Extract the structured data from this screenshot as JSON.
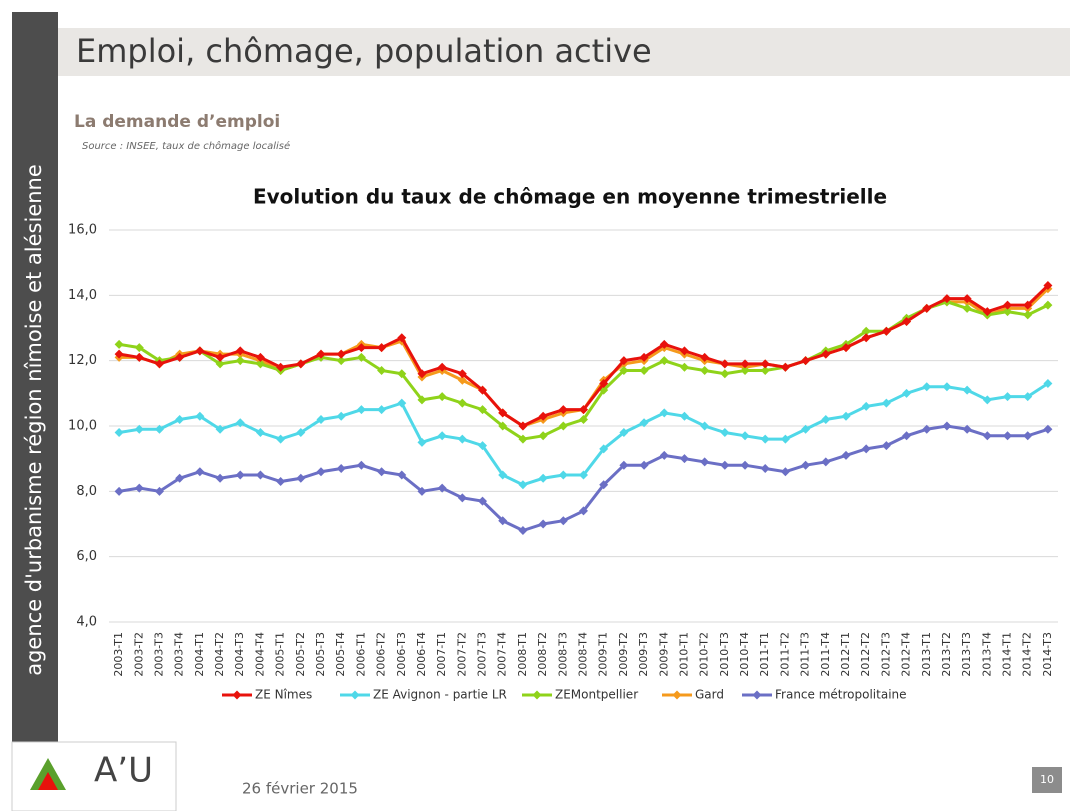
{
  "sidebar": {
    "text": "agence d'urbanisme région nîmoise et alésienne"
  },
  "header": {
    "title": "Emploi, chômage, population active"
  },
  "section": {
    "title": "La demande d’emploi",
    "source": "Source : INSEE, taux de chômage localisé"
  },
  "chart_data": {
    "type": "line",
    "title": "Evolution du taux de chômage en moyenne trimestrielle",
    "categories": [
      "2003-T1",
      "2003-T2",
      "2003-T3",
      "2003-T4",
      "2004-T1",
      "2004-T2",
      "2004-T3",
      "2004-T4",
      "2005-T1",
      "2005-T2",
      "2005-T3",
      "2005-T4",
      "2006-T1",
      "2006-T2",
      "2006-T3",
      "2006-T4",
      "2007-T1",
      "2007-T2",
      "2007-T3",
      "2007-T4",
      "2008-T1",
      "2008-T2",
      "2008-T3",
      "2008-T4",
      "2009-T1",
      "2009-T2",
      "2009-T3",
      "2009-T4",
      "2010-T1",
      "2010-T2",
      "2010-T3",
      "2010-T4",
      "2011-T1",
      "2011-T2",
      "2011-T3",
      "2011-T4",
      "2012-T1",
      "2012-T2",
      "2012-T3",
      "2012-T4",
      "2013-T1",
      "2013-T2",
      "2013-T3",
      "2013-T4",
      "2014-T1",
      "2014-T2",
      "2014-T3"
    ],
    "series": [
      {
        "name": "ZE Nîmes",
        "color": "#e8120c",
        "values": [
          12.2,
          12.1,
          11.9,
          12.1,
          12.3,
          12.1,
          12.3,
          12.1,
          11.8,
          11.9,
          12.2,
          12.2,
          12.4,
          12.4,
          12.7,
          11.6,
          11.8,
          11.6,
          11.1,
          10.4,
          10.0,
          10.3,
          10.5,
          10.5,
          11.3,
          12.0,
          12.1,
          12.5,
          12.3,
          12.1,
          11.9,
          11.9,
          11.9,
          11.8,
          12.0,
          12.2,
          12.4,
          12.7,
          12.9,
          13.2,
          13.6,
          13.9,
          13.9,
          13.5,
          13.7,
          13.7,
          14.3
        ]
      },
      {
        "name": "ZE Avignon - partie LR",
        "color": "#4fd8e8",
        "values": [
          9.8,
          9.9,
          9.9,
          10.2,
          10.3,
          9.9,
          10.1,
          9.8,
          9.6,
          9.8,
          10.2,
          10.3,
          10.5,
          10.5,
          10.7,
          9.5,
          9.7,
          9.6,
          9.4,
          8.5,
          8.2,
          8.4,
          8.5,
          8.5,
          9.3,
          9.8,
          10.1,
          10.4,
          10.3,
          10.0,
          9.8,
          9.7,
          9.6,
          9.6,
          9.9,
          10.2,
          10.3,
          10.6,
          10.7,
          11.0,
          11.2,
          11.2,
          11.1,
          10.8,
          10.9,
          10.9,
          11.3
        ]
      },
      {
        "name": "ZEMontpellier",
        "color": "#8fd31a",
        "values": [
          12.5,
          12.4,
          12.0,
          12.1,
          12.3,
          11.9,
          12.0,
          11.9,
          11.7,
          11.9,
          12.1,
          12.0,
          12.1,
          11.7,
          11.6,
          10.8,
          10.9,
          10.7,
          10.5,
          10.0,
          9.6,
          9.7,
          10.0,
          10.2,
          11.1,
          11.7,
          11.7,
          12.0,
          11.8,
          11.7,
          11.6,
          11.7,
          11.7,
          11.8,
          12.0,
          12.3,
          12.5,
          12.9,
          12.9,
          13.3,
          13.6,
          13.8,
          13.6,
          13.4,
          13.5,
          13.4,
          13.7
        ]
      },
      {
        "name": "Gard",
        "color": "#f59a1c",
        "values": [
          12.1,
          12.1,
          11.9,
          12.2,
          12.3,
          12.2,
          12.2,
          12.0,
          11.7,
          11.9,
          12.2,
          12.2,
          12.5,
          12.4,
          12.6,
          11.5,
          11.7,
          11.4,
          11.1,
          10.4,
          10.0,
          10.2,
          10.4,
          10.5,
          11.4,
          11.9,
          12.0,
          12.4,
          12.2,
          12.0,
          11.9,
          11.8,
          11.9,
          11.8,
          12.0,
          12.2,
          12.4,
          12.7,
          12.9,
          13.2,
          13.6,
          13.8,
          13.8,
          13.4,
          13.6,
          13.6,
          14.2
        ]
      },
      {
        "name": "France métropolitaine",
        "color": "#6b6fc5",
        "values": [
          8.0,
          8.1,
          8.0,
          8.4,
          8.6,
          8.4,
          8.5,
          8.5,
          8.3,
          8.4,
          8.6,
          8.7,
          8.8,
          8.6,
          8.5,
          8.0,
          8.1,
          7.8,
          7.7,
          7.1,
          6.8,
          7.0,
          7.1,
          7.4,
          8.2,
          8.8,
          8.8,
          9.1,
          9.0,
          8.9,
          8.8,
          8.8,
          8.7,
          8.6,
          8.8,
          8.9,
          9.1,
          9.3,
          9.4,
          9.7,
          9.9,
          10.0,
          9.9,
          9.7,
          9.7,
          9.7,
          9.9
        ]
      }
    ],
    "ylim": [
      4,
      16
    ],
    "yticks": [
      {
        "value": 4,
        "label": "4,0"
      },
      {
        "value": 6,
        "label": "6,0"
      },
      {
        "value": 8,
        "label": "8,0"
      },
      {
        "value": 10,
        "label": "10,0"
      },
      {
        "value": 12,
        "label": "12,0"
      },
      {
        "value": 14,
        "label": "14,0"
      },
      {
        "value": 16,
        "label": "16,0"
      }
    ],
    "grid": true,
    "legend": "bottom"
  },
  "logo": {
    "text": "A’U"
  },
  "footer": {
    "date": "26 février 2015",
    "page": "10"
  }
}
